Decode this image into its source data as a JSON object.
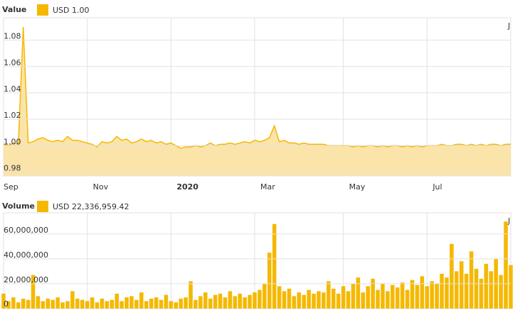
{
  "chart_data": [
    {
      "type": "area",
      "title": "Value",
      "annotation": "J",
      "categories": [
        "Sep",
        null,
        null,
        null,
        null,
        null,
        null,
        null,
        null,
        null,
        null,
        null,
        null,
        null,
        null,
        null,
        null,
        "Nov",
        null,
        null,
        null,
        null,
        null,
        null,
        null,
        null,
        null,
        null,
        null,
        null,
        null,
        null,
        null,
        null,
        "2020",
        null,
        null,
        null,
        null,
        null,
        null,
        null,
        null,
        null,
        null,
        null,
        null,
        null,
        null,
        null,
        null,
        "Mar",
        null,
        null,
        null,
        null,
        null,
        null,
        null,
        null,
        null,
        null,
        null,
        null,
        null,
        null,
        null,
        null,
        null,
        "May",
        null,
        null,
        null,
        null,
        null,
        null,
        null,
        null,
        null,
        null,
        null,
        null,
        null,
        null,
        null,
        null,
        "Jul",
        null,
        null,
        null,
        null,
        null,
        null,
        null,
        null,
        null,
        null,
        null,
        null,
        null,
        null,
        null,
        null,
        null
      ],
      "series": [
        {
          "name": "USD 1.00",
          "color": "#f5b800",
          "fill": "#fbe4aa",
          "values": [
            1.001,
            1.0,
            1.002,
            1.001,
            1.09,
            1.002,
            1.003,
            1.005,
            1.006,
            1.004,
            1.003,
            1.004,
            1.003,
            1.007,
            1.004,
            1.004,
            1.003,
            1.002,
            1.001,
            0.999,
            1.003,
            1.002,
            1.003,
            1.007,
            1.004,
            1.005,
            1.002,
            1.003,
            1.005,
            1.003,
            1.004,
            1.002,
            1.003,
            1.001,
            1.002,
            1.0,
            0.998,
            0.999,
            0.999,
            1.0,
            0.999,
            1.0,
            1.002,
            1.0,
            1.001,
            1.001,
            1.002,
            1.001,
            1.002,
            1.003,
            1.002,
            1.004,
            1.003,
            1.004,
            1.006,
            1.015,
            1.003,
            1.004,
            1.002,
            1.002,
            1.001,
            1.002,
            1.001,
            1.001,
            1.001,
            1.001,
            1.0,
            1.0,
            1.0,
            1.0,
            1.0,
            0.999,
            1.0,
            0.999,
            1.0,
            1.0,
            0.999,
            1.0,
            0.999,
            1.0,
            1.0,
            0.999,
            1.0,
            0.999,
            1.0,
            0.999,
            1.0,
            1.0,
            1.0,
            1.001,
            1.0,
            1.0,
            1.001,
            1.001,
            1.0,
            1.001,
            1.0,
            1.001,
            1.0,
            1.001,
            1.001,
            1.0,
            1.001,
            1.001
          ]
        }
      ],
      "ylim": [
        0.977,
        1.097
      ],
      "yticks": [
        0.98,
        {
          "value": 1,
          "label": "1.00"
        },
        1.02,
        1.04,
        1.06,
        1.08
      ],
      "grid": true
    },
    {
      "type": "bar",
      "title": "Volume",
      "annotation": "J",
      "series": [
        {
          "name": "USD 22,336,959.42",
          "color": "#f5b800",
          "values": [
            12000000,
            6000000,
            9000000,
            5000000,
            8000000,
            7000000,
            27000000,
            10000000,
            6000000,
            8000000,
            7000000,
            9000000,
            5000000,
            6000000,
            14000000,
            8000000,
            7000000,
            6000000,
            9000000,
            5000000,
            8000000,
            6000000,
            7000000,
            12000000,
            6000000,
            9000000,
            10000000,
            7000000,
            13000000,
            6000000,
            8000000,
            9000000,
            7000000,
            11000000,
            6000000,
            5000000,
            8000000,
            9000000,
            22000000,
            7000000,
            10000000,
            13000000,
            8000000,
            11000000,
            12000000,
            9000000,
            14000000,
            10000000,
            12000000,
            9000000,
            11000000,
            13000000,
            15000000,
            20000000,
            45000000,
            68000000,
            18000000,
            14000000,
            16000000,
            10000000,
            13000000,
            11000000,
            15000000,
            12000000,
            14000000,
            13000000,
            22000000,
            16000000,
            12000000,
            18000000,
            14000000,
            20000000,
            25000000,
            13000000,
            18000000,
            24000000,
            15000000,
            20000000,
            14000000,
            19000000,
            17000000,
            21000000,
            15000000,
            23000000,
            19000000,
            26000000,
            18000000,
            22000000,
            20000000,
            28000000,
            25000000,
            52000000,
            30000000,
            38000000,
            28000000,
            46000000,
            32000000,
            24000000,
            36000000,
            30000000,
            40000000,
            27000000,
            70000000,
            35000000
          ]
        }
      ],
      "ylim": [
        0,
        77000000
      ],
      "yticks": [
        0,
        {
          "value": 20000000,
          "label": "20,000,000"
        },
        {
          "value": 40000000,
          "label": "40,000,000"
        },
        {
          "value": 60000000,
          "label": "60,000,000"
        }
      ],
      "grid": true
    }
  ]
}
